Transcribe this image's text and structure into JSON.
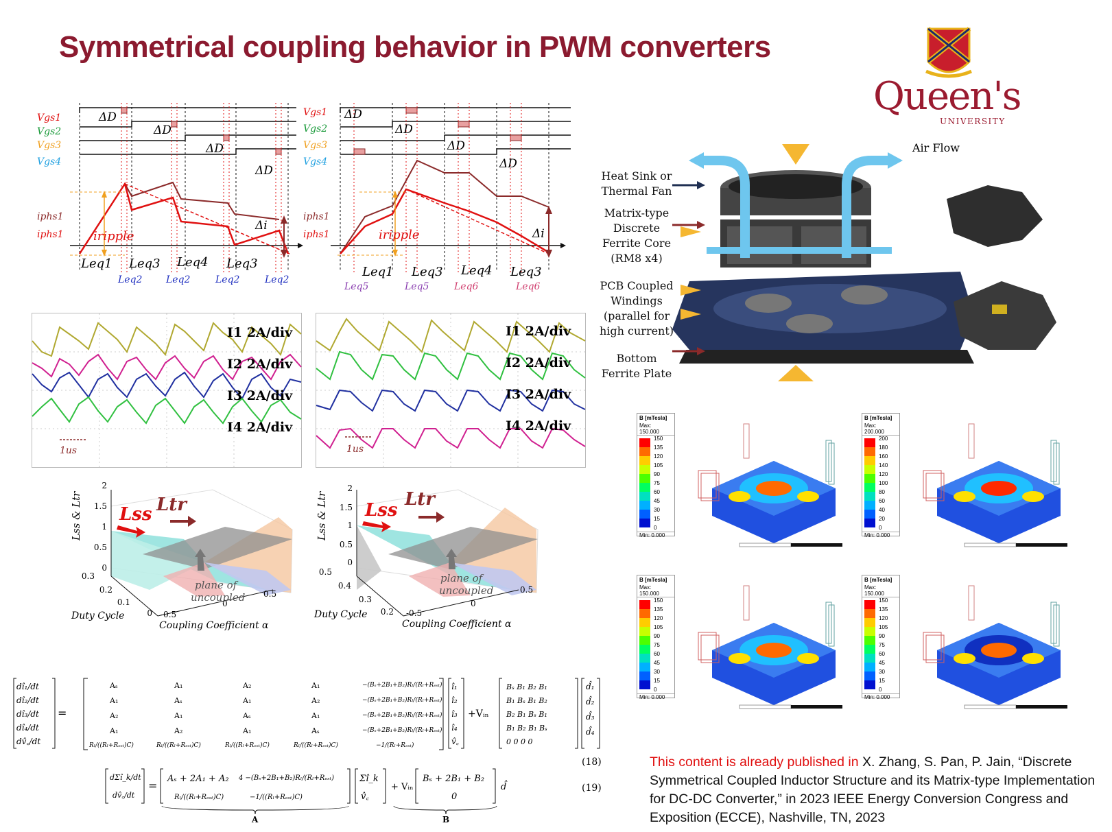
{
  "title": "Symmetrical coupling behavior in PWM converters",
  "logo": {
    "word": "Queen's",
    "sub": "UNIVERSITY"
  },
  "timing_left": {
    "signals": [
      "Vgs1",
      "Vgs2",
      "Vgs3",
      "Vgs4"
    ],
    "delta_d": "ΔD",
    "currents": [
      "iphs1",
      "iphs1"
    ],
    "ripple": "iripple",
    "delta_i": "Δi",
    "leq_top": [
      "Leq1",
      "Leq3",
      "Leq4",
      "Leq3"
    ],
    "leq_bottom": [
      "Leq2",
      "Leq2",
      "Leq2",
      "Leq2"
    ]
  },
  "timing_right": {
    "signals": [
      "Vgs1",
      "Vgs2",
      "Vgs3",
      "Vgs4"
    ],
    "delta_d": "ΔD",
    "currents": [
      "iphs1",
      "iphs1"
    ],
    "ripple": "iripple",
    "delta_i": "Δi",
    "leq_top": [
      "Leq1",
      "Leq3",
      "Leq4",
      "Leq3"
    ],
    "leq_bottom": [
      "Leq5",
      "Leq5",
      "Leq6",
      "Leq6"
    ]
  },
  "scope_left": {
    "labels": [
      "I1 2A/div",
      "I2 2A/div",
      "I3 2A/div",
      "I4 2A/div"
    ],
    "time": "1us"
  },
  "scope_right": {
    "labels": [
      "I1 2A/div",
      "I2 2A/div",
      "I3 2A/div",
      "I4 2A/div"
    ],
    "time": "1us"
  },
  "plot3d_left": {
    "zlabel": "Lss & Ltr",
    "zticks": [
      "2",
      "1.5",
      "1",
      "0.5",
      "0"
    ],
    "duty_ticks": [
      "0.3",
      "0.2",
      "0.1",
      "0"
    ],
    "alpha_ticks": [
      "-0.5",
      "0",
      "0.5"
    ],
    "lss": "Lss",
    "ltr": "Ltr",
    "plane": [
      "plane of",
      "uncoupled"
    ],
    "xlabel": "Duty Cycle",
    "ylabel": "Coupling Coefficient α"
  },
  "plot3d_right": {
    "zlabel": "Lss & Ltr",
    "zticks": [
      "2",
      "1.5",
      "1",
      "0.5",
      "0"
    ],
    "duty_ticks": [
      "0.5",
      "0.4",
      "0.3",
      "0.2"
    ],
    "alpha_ticks": [
      "-0.5",
      "0",
      "0.5"
    ],
    "lss": "Lss",
    "ltr": "Ltr",
    "plane": [
      "plane of",
      "uncoupled"
    ],
    "xlabel": "Duty Cycle",
    "ylabel": "Coupling Coefficient α"
  },
  "equations": {
    "n18": "(18)",
    "n19": "(19)",
    "A": "A",
    "B": "B"
  },
  "structure": {
    "air_flow": "Air Flow",
    "labels": [
      [
        "Heat Sink or",
        "Thermal Fan"
      ],
      [
        "Matrix-type",
        "Discrete",
        "Ferrite Core",
        "(RM8 x4)"
      ],
      [
        "PCB Coupled",
        "Windings",
        "(parallel for",
        "high current)"
      ],
      [
        "Bottom",
        "Ferrite Plate"
      ]
    ]
  },
  "fem": [
    {
      "title": "B [mTesla]",
      "max": "Max: 150.000",
      "min": "Min: 0.000",
      "ticks": [
        "150",
        "135",
        "120",
        "105",
        "90",
        "75",
        "60",
        "45",
        "30",
        "15",
        "0"
      ]
    },
    {
      "title": "B [mTesla]",
      "max": "Max: 200.000",
      "min": "Min: 0.000",
      "ticks": [
        "200",
        "180",
        "160",
        "140",
        "120",
        "100",
        "80",
        "60",
        "40",
        "20",
        "0"
      ]
    },
    {
      "title": "B [mTesla]",
      "max": "Max: 150.000",
      "min": "Min: 0.000",
      "ticks": [
        "150",
        "135",
        "120",
        "105",
        "90",
        "75",
        "60",
        "45",
        "30",
        "15",
        "0"
      ]
    },
    {
      "title": "B [mTesla]",
      "max": "Max: 150.000",
      "min": "Min: 0.000",
      "ticks": [
        "150",
        "135",
        "120",
        "105",
        "90",
        "75",
        "60",
        "45",
        "30",
        "15",
        "0"
      ]
    }
  ],
  "citation": {
    "red": "This content is already published in",
    "text": "X. Zhang, S. Pan, P. Jain, “Discrete Symmetrical Coupled Inductor Structure and its Matrix-type Implementation for DC-DC Converter,” in 2023 IEEE Energy Conversion Congress and Exposition (ECCE), Nashville, TN, 2023"
  },
  "colors": {
    "title": "#8b1a2f",
    "red": "#e01010",
    "dark_red": "#8b2a2a",
    "cyan": "#6ec6ee"
  }
}
